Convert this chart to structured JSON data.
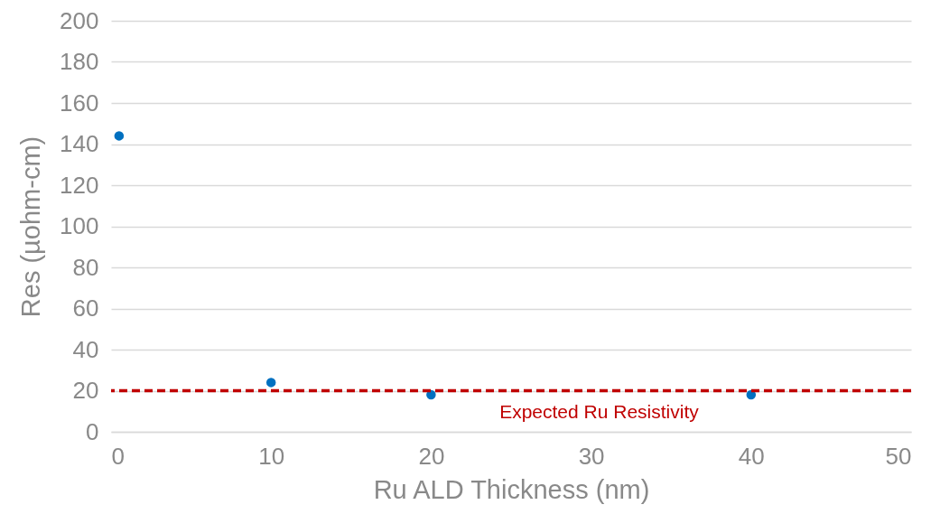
{
  "chart_data": {
    "type": "scatter",
    "xlabel": "Ru ALD Thickness (nm)",
    "ylabel": "Res (µohm-cm)",
    "x": [
      0.5,
      10,
      20,
      40
    ],
    "series": [
      {
        "color": "#0070c0",
        "values": [
          144,
          24,
          18,
          18
        ]
      }
    ],
    "xlim": [
      0,
      50
    ],
    "xticks": [
      0,
      10,
      20,
      30,
      40,
      50
    ],
    "ylim": [
      0,
      200
    ],
    "yticks": [
      0,
      20,
      40,
      60,
      80,
      100,
      120,
      140,
      160,
      180,
      200
    ],
    "grid": "y",
    "marker": "circle",
    "ref_lines": [
      {
        "axis": "y",
        "value": 20,
        "label": "Expected Ru Resistivity",
        "color": "#c00000",
        "line_style": "dashed"
      }
    ]
  }
}
